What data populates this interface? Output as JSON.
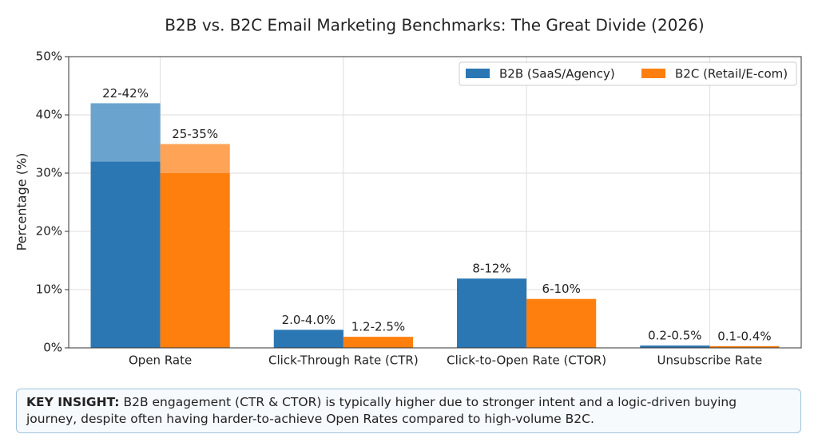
{
  "chart_data": {
    "type": "bar",
    "title": "B2B vs. B2C Email Marketing Benchmarks: The Great Divide (2026)",
    "y_label": "Percentage (%)",
    "categories": [
      "Open Rate",
      "Click-Through Rate (CTR)",
      "Click-to-Open Rate (CTOR)",
      "Unsubscribe Rate"
    ],
    "series": [
      {
        "name": "B2B (SaaS/Agency)",
        "color": "#2b77b4",
        "light_color": "#6ba3cf",
        "values": [
          32,
          3.1,
          11.9,
          0.4
        ],
        "extension_values": [
          10,
          null,
          null,
          null
        ],
        "value_labels": [
          "22-42%",
          "2.0-4.0%",
          "8-12%",
          "0.2-0.5%"
        ]
      },
      {
        "name": "B2C (Retail/E-com)",
        "color": "#ff7f0e",
        "light_color": "#ffa357",
        "values": [
          30,
          1.9,
          8.4,
          0.3
        ],
        "extension_values": [
          5,
          null,
          null,
          null
        ],
        "value_labels": [
          "25-35%",
          "1.2-2.5%",
          "6-10%",
          "0.1-0.4%"
        ]
      }
    ],
    "ylim": [
      0,
      50
    ],
    "yticks": [
      {
        "value": 0,
        "label": "0%"
      },
      {
        "value": 10,
        "label": "10%"
      },
      {
        "value": 20,
        "label": "20%"
      },
      {
        "value": 30,
        "label": "30%"
      },
      {
        "value": 40,
        "label": "40%"
      },
      {
        "value": 50,
        "label": "50%"
      }
    ],
    "grid": true,
    "legend": "upper right"
  },
  "insight": {
    "label": "KEY INSIGHT:",
    "text": "B2B engagement (CTR & CTOR) is typically higher due to stronger intent and a logic-driven buying journey, despite often having harder-to-achieve Open Rates compared to high-volume B2C."
  }
}
